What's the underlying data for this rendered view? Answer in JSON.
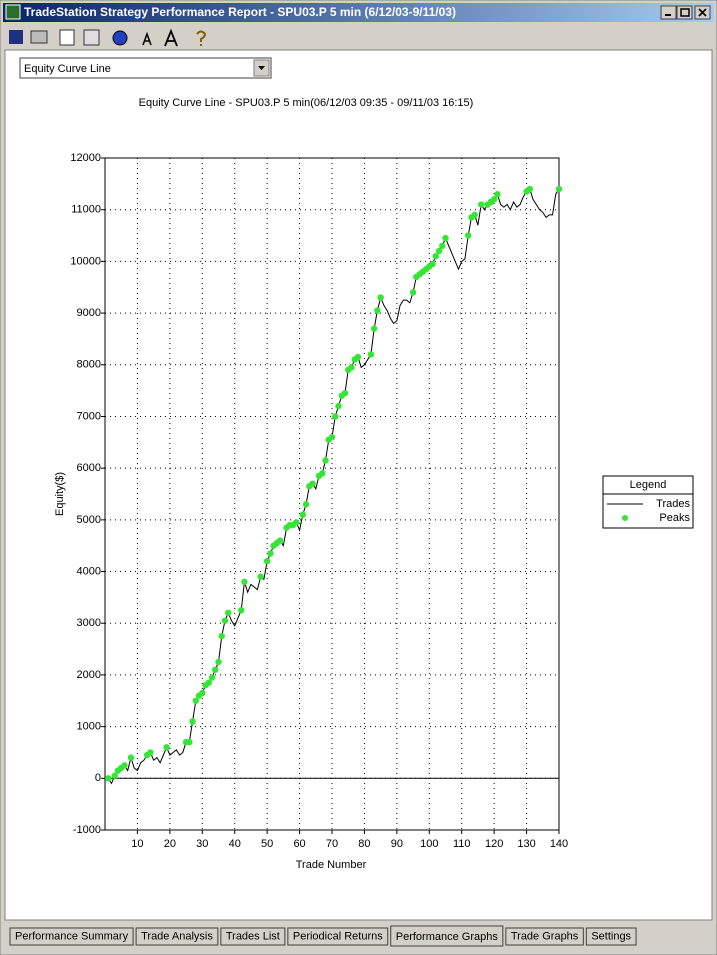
{
  "window": {
    "title": "TradeStation Strategy Performance Report - SPU03.P 5 min (6/12/03-9/11/03)"
  },
  "dropdown": {
    "selected": "Equity Curve Line"
  },
  "chart_data": {
    "type": "line",
    "title": "Equity Curve Line - SPU03.P 5 min(06/12/03 09:35 - 09/11/03 16:15)",
    "x_label": "Trade Number",
    "y_label": "Equity($)",
    "legend_title": "Legend",
    "legend": "right",
    "grid": true,
    "xlim": [
      0,
      140
    ],
    "xticks": [
      10,
      20,
      30,
      40,
      50,
      60,
      70,
      80,
      90,
      100,
      110,
      120,
      130,
      140
    ],
    "ylim": [
      -1000,
      12000
    ],
    "yticks": [
      -1000,
      0,
      1000,
      2000,
      3000,
      4000,
      5000,
      6000,
      7000,
      8000,
      9000,
      10000,
      11000,
      12000
    ],
    "x": [
      1,
      2,
      3,
      4,
      5,
      6,
      7,
      8,
      9,
      10,
      11,
      12,
      13,
      14,
      15,
      16,
      17,
      18,
      19,
      20,
      21,
      22,
      23,
      24,
      25,
      26,
      27,
      28,
      29,
      30,
      31,
      32,
      33,
      34,
      35,
      36,
      37,
      38,
      39,
      40,
      41,
      42,
      43,
      44,
      45,
      46,
      47,
      48,
      49,
      50,
      51,
      52,
      53,
      54,
      55,
      56,
      57,
      58,
      59,
      60,
      61,
      62,
      63,
      64,
      65,
      66,
      67,
      68,
      69,
      70,
      71,
      72,
      73,
      74,
      75,
      76,
      77,
      78,
      79,
      80,
      81,
      82,
      83,
      84,
      85,
      86,
      87,
      88,
      89,
      90,
      91,
      92,
      93,
      94,
      95,
      96,
      97,
      98,
      99,
      100,
      101,
      102,
      103,
      104,
      105,
      106,
      107,
      108,
      109,
      110,
      111,
      112,
      113,
      114,
      115,
      116,
      117,
      118,
      119,
      120,
      121,
      122,
      123,
      124,
      125,
      126,
      127,
      128,
      129,
      130,
      131,
      132,
      133,
      134,
      135,
      136,
      137,
      138,
      139,
      140
    ],
    "series": [
      {
        "name": "Trades",
        "type": "line",
        "color": "#000000",
        "values": [
          0,
          -100,
          50,
          150,
          200,
          250,
          150,
          400,
          200,
          150,
          300,
          350,
          450,
          500,
          350,
          400,
          300,
          450,
          600,
          450,
          500,
          550,
          450,
          500,
          700,
          700,
          1100,
          1500,
          1600,
          1650,
          1800,
          1850,
          1950,
          2100,
          2250,
          2750,
          3050,
          3200,
          3050,
          2950,
          3100,
          3250,
          3800,
          3600,
          3750,
          3700,
          3650,
          3900,
          3850,
          4200,
          4350,
          4500,
          4550,
          4600,
          4500,
          4850,
          4900,
          4900,
          4950,
          4800,
          5100,
          5300,
          5650,
          5700,
          5600,
          5850,
          5900,
          6150,
          6550,
          6600,
          7000,
          7200,
          7400,
          7450,
          7900,
          7950,
          8100,
          8150,
          7950,
          8000,
          8100,
          8200,
          8700,
          9050,
          9300,
          9150,
          9050,
          8900,
          8800,
          8850,
          9150,
          9250,
          9250,
          9200,
          9400,
          9700,
          9750,
          9800,
          9850,
          9900,
          9950,
          10100,
          10200,
          10300,
          10450,
          10300,
          10150,
          10000,
          9850,
          10000,
          10050,
          10500,
          10850,
          10900,
          10700,
          11100,
          11000,
          11100,
          11150,
          11200,
          11300,
          11100,
          11050,
          11100,
          11000,
          11150,
          11050,
          11100,
          11250,
          11350,
          11400,
          11200,
          11100,
          11000,
          10950,
          10850,
          10900,
          10900,
          11300,
          11400
        ]
      },
      {
        "name": "Peaks",
        "type": "scatter",
        "color": "#33e633",
        "values": [
          0,
          null,
          50,
          150,
          200,
          250,
          null,
          400,
          null,
          null,
          null,
          null,
          450,
          500,
          null,
          null,
          null,
          null,
          600,
          null,
          null,
          null,
          null,
          null,
          700,
          700,
          1100,
          1500,
          1600,
          1650,
          1800,
          1850,
          1950,
          2100,
          2250,
          2750,
          3050,
          3200,
          null,
          null,
          null,
          3250,
          3800,
          null,
          null,
          null,
          null,
          3900,
          null,
          4200,
          4350,
          4500,
          4550,
          4600,
          null,
          4850,
          4900,
          4900,
          4950,
          null,
          5100,
          5300,
          5650,
          5700,
          null,
          5850,
          5900,
          6150,
          6550,
          6600,
          7000,
          7200,
          7400,
          7450,
          7900,
          7950,
          8100,
          8150,
          null,
          null,
          null,
          8200,
          8700,
          9050,
          9300,
          null,
          null,
          null,
          null,
          null,
          null,
          null,
          null,
          null,
          9400,
          9700,
          9750,
          9800,
          9850,
          9900,
          9950,
          10100,
          10200,
          10300,
          10450,
          null,
          null,
          null,
          null,
          null,
          null,
          10500,
          10850,
          10900,
          null,
          11100,
          null,
          11100,
          11150,
          11200,
          11300,
          null,
          null,
          null,
          null,
          null,
          null,
          null,
          null,
          11350,
          11400,
          null,
          null,
          null,
          null,
          null,
          null,
          null,
          null,
          11400
        ]
      }
    ]
  },
  "tabs": {
    "active": 4,
    "items": [
      "Performance Summary",
      "Trade Analysis",
      "Trades List",
      "Periodical Returns",
      "Performance Graphs",
      "Trade Graphs",
      "Settings"
    ]
  }
}
